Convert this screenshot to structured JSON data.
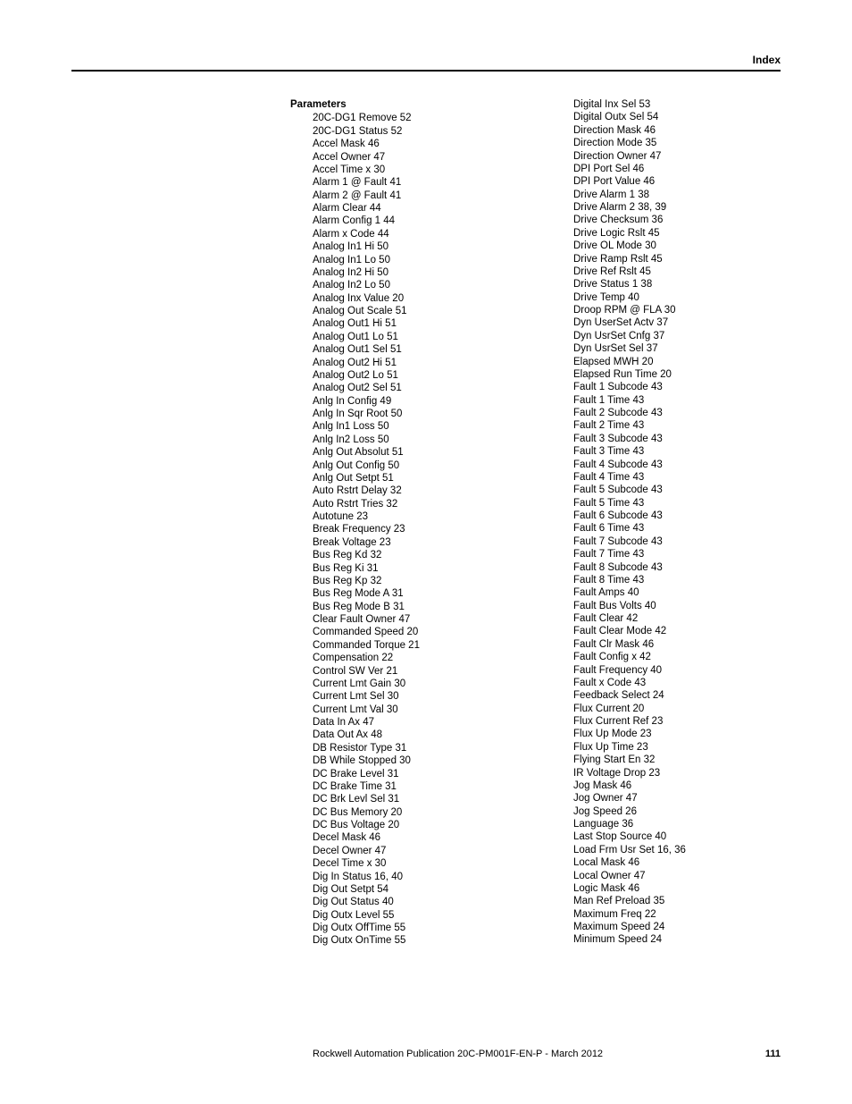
{
  "header": {
    "label": "Index"
  },
  "section_title": "Parameters",
  "col1": [
    "20C-DG1 Remove 52",
    "20C-DG1 Status 52",
    "Accel Mask 46",
    "Accel Owner 47",
    "Accel Time x 30",
    "Alarm 1 @ Fault 41",
    "Alarm 2 @ Fault 41",
    "Alarm Clear 44",
    "Alarm Config 1 44",
    "Alarm x Code 44",
    "Analog In1 Hi 50",
    "Analog In1 Lo 50",
    "Analog In2 Hi 50",
    "Analog In2 Lo 50",
    "Analog Inx Value 20",
    "Analog Out Scale 51",
    "Analog Out1 Hi 51",
    "Analog Out1 Lo 51",
    "Analog Out1 Sel 51",
    "Analog Out2 Hi 51",
    "Analog Out2 Lo 51",
    "Analog Out2 Sel 51",
    "Anlg In Config 49",
    "Anlg In Sqr Root 50",
    "Anlg In1 Loss 50",
    "Anlg In2 Loss 50",
    "Anlg Out Absolut 51",
    "Anlg Out Config 50",
    "Anlg Out Setpt 51",
    "Auto Rstrt Delay 32",
    "Auto Rstrt Tries 32",
    "Autotune 23",
    "Break Frequency 23",
    "Break Voltage 23",
    "Bus Reg Kd 32",
    "Bus Reg Ki 31",
    "Bus Reg Kp 32",
    "Bus Reg Mode A 31",
    "Bus Reg Mode B 31",
    "Clear Fault Owner 47",
    "Commanded Speed 20",
    "Commanded Torque 21",
    "Compensation 22",
    "Control SW Ver 21",
    "Current Lmt Gain 30",
    "Current Lmt Sel 30",
    "Current Lmt Val 30",
    "Data In Ax 47",
    "Data Out Ax 48",
    "DB Resistor Type 31",
    "DB While Stopped 30",
    "DC Brake Level 31",
    "DC Brake Time 31",
    "DC Brk Levl Sel 31",
    "DC Bus Memory 20",
    "DC Bus Voltage 20",
    "Decel Mask 46",
    "Decel Owner 47",
    "Decel Time x 30",
    "Dig In Status 16, 40",
    "Dig Out Setpt 54",
    "Dig Out Status 40",
    "Dig Outx Level 55",
    "Dig Outx OffTime 55",
    "Dig Outx OnTime 55"
  ],
  "col2": [
    "Digital Inx Sel 53",
    "Digital Outx Sel 54",
    "Direction Mask 46",
    "Direction Mode 35",
    "Direction Owner 47",
    "DPI Port Sel 46",
    "DPI Port Value 46",
    "Drive Alarm 1 38",
    "Drive Alarm 2 38, 39",
    "Drive Checksum 36",
    "Drive Logic Rslt 45",
    "Drive OL Mode 30",
    "Drive Ramp Rslt 45",
    "Drive Ref Rslt 45",
    "Drive Status 1 38",
    "Drive Temp 40",
    "Droop RPM @ FLA 30",
    "Dyn UserSet Actv 37",
    "Dyn UsrSet Cnfg 37",
    "Dyn UsrSet Sel 37",
    "Elapsed MWH 20",
    "Elapsed Run Time 20",
    "Fault 1 Subcode 43",
    "Fault 1 Time 43",
    "Fault 2 Subcode 43",
    "Fault 2 Time 43",
    "Fault 3 Subcode 43",
    "Fault 3 Time 43",
    "Fault 4 Subcode 43",
    "Fault 4 Time 43",
    "Fault 5 Subcode 43",
    "Fault 5 Time 43",
    "Fault 6 Subcode 43",
    "Fault 6 Time 43",
    "Fault 7 Subcode 43",
    "Fault 7 Time 43",
    "Fault 8 Subcode 43",
    "Fault 8 Time 43",
    "Fault Amps 40",
    "Fault Bus Volts 40",
    "Fault Clear 42",
    "Fault Clear Mode 42",
    "Fault Clr Mask 46",
    "Fault Config x 42",
    "Fault Frequency 40",
    "Fault x Code 43",
    "Feedback Select 24",
    "Flux Current 20",
    "Flux Current Ref 23",
    "Flux Up Mode 23",
    "Flux Up Time 23",
    "Flying Start En 32",
    "IR Voltage Drop 23",
    "Jog Mask 46",
    "Jog Owner 47",
    "Jog Speed 26",
    "Language 36",
    "Last Stop Source 40",
    "Load Frm Usr Set 16, 36",
    "Local Mask 46",
    "Local Owner 47",
    "Logic Mask 46",
    "Man Ref Preload 35",
    "Maximum Freq 22",
    "Maximum Speed 24",
    "Minimum Speed 24"
  ],
  "footer": {
    "publication": "Rockwell Automation Publication 20C-PM001F-EN-P - March 2012",
    "page": "111"
  }
}
